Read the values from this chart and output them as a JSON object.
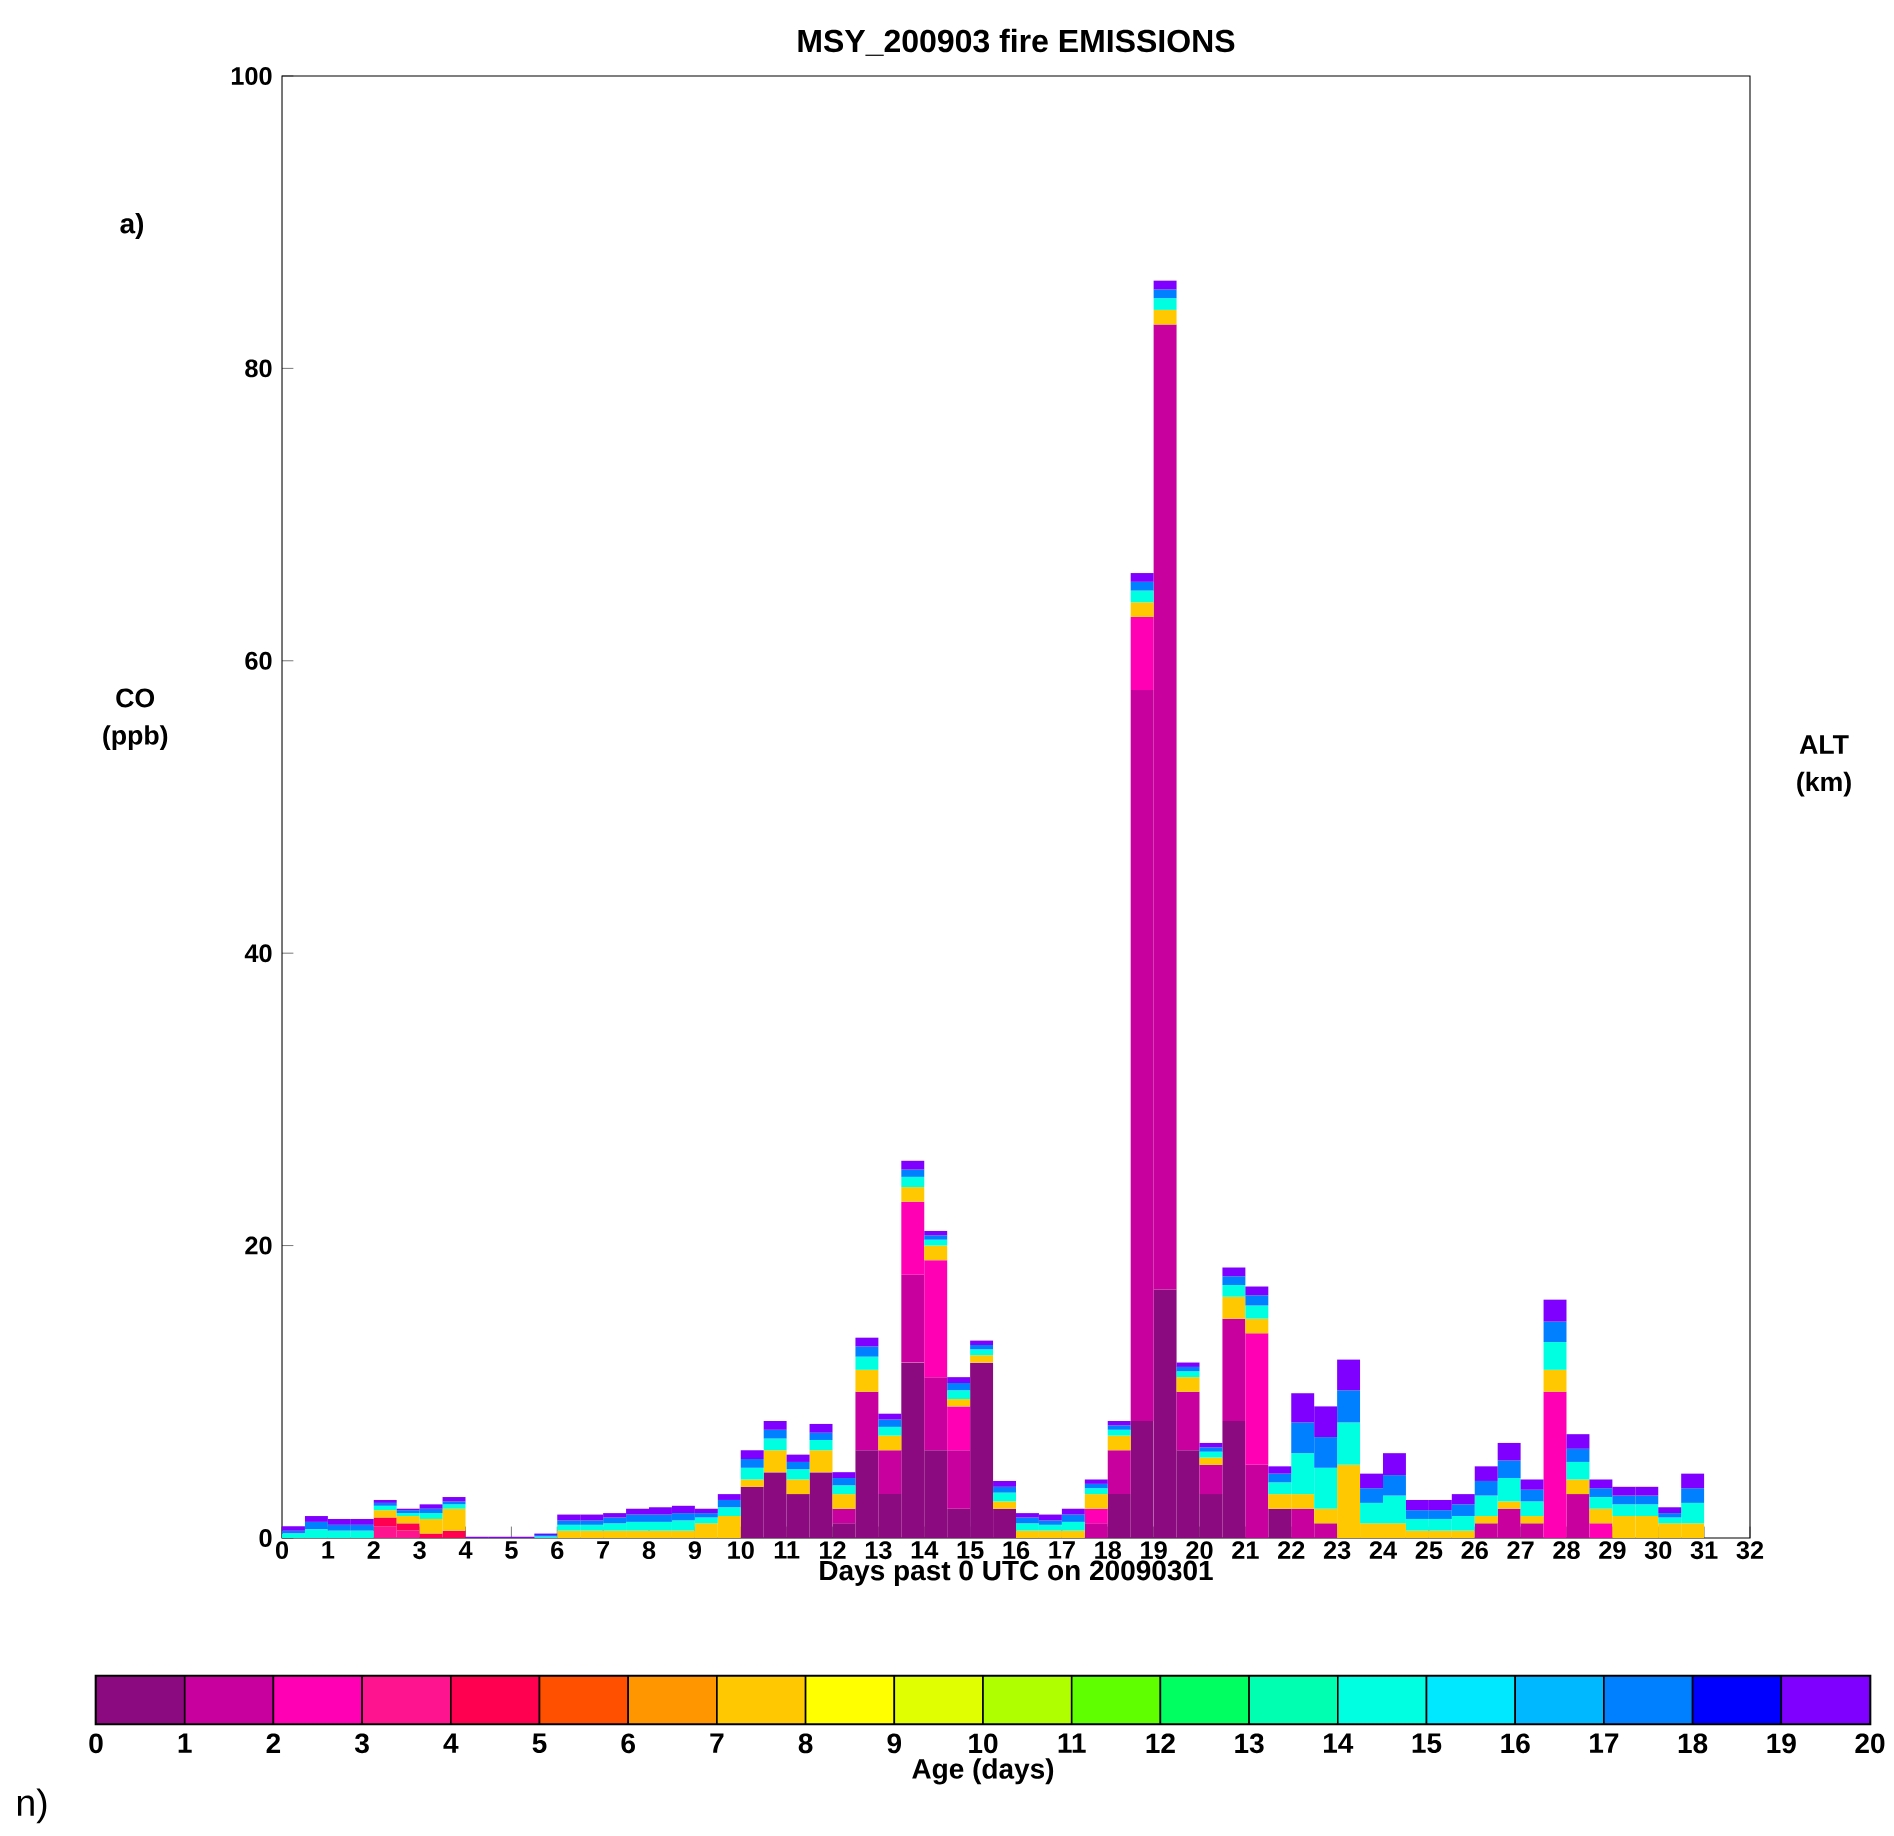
{
  "chart_data": {
    "type": "bar",
    "stacked": true,
    "title": "MSY_200903 fire EMISSIONS",
    "xlabel": "Days past 0 UTC on 20090301",
    "ylabel": "CO (ppb)",
    "y2label": "ALT (km)",
    "clabel": "Age (days)",
    "annotations": [
      "a)",
      "n)"
    ],
    "xlim": [
      0,
      32
    ],
    "ylim": [
      0,
      100
    ],
    "xticks": [
      0,
      1,
      2,
      3,
      4,
      5,
      6,
      7,
      8,
      9,
      10,
      11,
      12,
      13,
      14,
      15,
      16,
      17,
      18,
      19,
      20,
      21,
      22,
      23,
      24,
      25,
      26,
      27,
      28,
      29,
      30,
      31,
      32
    ],
    "yticks": [
      0,
      20,
      40,
      60,
      80,
      100
    ],
    "clim": [
      0,
      20
    ],
    "cticks": [
      0,
      1,
      2,
      3,
      4,
      5,
      6,
      7,
      8,
      9,
      10,
      11,
      12,
      13,
      14,
      15,
      16,
      17,
      18,
      19,
      20
    ],
    "x": [
      0.25,
      0.75,
      1.25,
      1.75,
      2.25,
      2.75,
      3.25,
      3.75,
      4.25,
      4.75,
      5.25,
      5.75,
      6.25,
      6.75,
      7.25,
      7.75,
      8.25,
      8.75,
      9.25,
      9.75,
      10.25,
      10.75,
      11.25,
      11.75,
      12.25,
      12.75,
      13.25,
      13.75,
      14.25,
      14.75,
      15.25,
      15.75,
      16.25,
      16.75,
      17.25,
      17.75,
      18.25,
      18.75,
      19.25,
      19.75,
      20.25,
      20.75,
      21.25,
      21.75,
      22.25,
      22.75,
      23.25,
      23.75,
      24.25,
      24.75,
      25.25,
      25.75,
      26.25,
      26.75,
      27.25,
      27.75,
      28.25,
      28.75,
      29.25,
      29.75,
      30.25,
      30.75
    ],
    "series": [
      {
        "color": "#8c0a80",
        "values": [
          0,
          0,
          0,
          0,
          0,
          0,
          0,
          0,
          0,
          0,
          0,
          0,
          0,
          0,
          0,
          0,
          0,
          0,
          0,
          0,
          3.5,
          4.5,
          3,
          4.5,
          1,
          6,
          3,
          12,
          6,
          2,
          12,
          2,
          0,
          0,
          0,
          0,
          3,
          8,
          17,
          6,
          3,
          8,
          0,
          2,
          0,
          0,
          0,
          0,
          0,
          0,
          0,
          0,
          0,
          0,
          0,
          0,
          0,
          0,
          0,
          0,
          0,
          0
        ]
      },
      {
        "color": "#c8009e",
        "values": [
          0,
          0,
          0,
          0,
          0,
          0,
          0,
          0,
          0,
          0,
          0,
          0,
          0,
          0,
          0,
          0,
          0,
          0,
          0,
          0,
          0,
          0,
          0,
          0,
          1,
          4,
          3,
          6,
          5,
          4,
          0,
          0,
          0,
          0,
          0,
          1,
          3,
          50,
          66,
          4,
          2,
          7,
          5,
          0,
          2,
          1,
          0,
          0,
          0,
          0,
          0,
          0,
          1,
          2,
          1,
          0,
          3,
          0,
          0,
          0,
          0,
          0
        ]
      },
      {
        "color": "#ff00b4",
        "values": [
          0,
          0,
          0,
          0,
          0,
          0,
          0,
          0,
          0,
          0,
          0,
          0,
          0,
          0,
          0,
          0,
          0,
          0,
          0,
          0,
          0,
          0,
          0,
          0,
          0,
          0,
          0,
          5,
          8,
          3,
          0,
          0,
          0,
          0,
          0,
          1,
          0,
          5,
          0,
          0,
          0,
          0,
          9,
          0,
          0,
          0,
          0,
          0,
          0,
          0,
          0,
          0,
          0,
          0,
          0,
          10,
          0,
          1,
          0,
          0,
          0,
          0
        ]
      },
      {
        "color": "#ff1490",
        "values": [
          0,
          0,
          0,
          0,
          0.8,
          0.5,
          0,
          0,
          0,
          0,
          0,
          0,
          0,
          0,
          0,
          0,
          0,
          0,
          0,
          0,
          0,
          0,
          0,
          0,
          0,
          0,
          0,
          0,
          0,
          0,
          0,
          0,
          0,
          0,
          0,
          0,
          0,
          0,
          0,
          0,
          0,
          0,
          0,
          0,
          0,
          0,
          0,
          0,
          0,
          0,
          0,
          0,
          0,
          0,
          0,
          0,
          0,
          0,
          0,
          0,
          0,
          0
        ]
      },
      {
        "color": "#ff0050",
        "values": [
          0,
          0,
          0,
          0,
          0.6,
          0.5,
          0.3,
          0.5,
          0,
          0,
          0,
          0,
          0,
          0,
          0,
          0,
          0,
          0,
          0,
          0,
          0,
          0,
          0,
          0,
          0,
          0,
          0,
          0,
          0,
          0,
          0,
          0,
          0,
          0,
          0,
          0,
          0,
          0,
          0,
          0,
          0,
          0,
          0,
          0,
          0,
          0,
          0,
          0,
          0,
          0,
          0,
          0,
          0,
          0,
          0,
          0,
          0,
          0,
          0,
          0,
          0,
          0
        ]
      },
      {
        "color": "#ff5000",
        "values": [
          0,
          0,
          0,
          0,
          0,
          0,
          0,
          0,
          0,
          0,
          0,
          0,
          0,
          0,
          0,
          0,
          0,
          0,
          0,
          0,
          0,
          0,
          0,
          0,
          0,
          0,
          0,
          0,
          0,
          0,
          0,
          0,
          0,
          0,
          0,
          0,
          0,
          0,
          0,
          0,
          0,
          0,
          0,
          0,
          0,
          0,
          0,
          0,
          0,
          0,
          0,
          0,
          0,
          0,
          0,
          0,
          0,
          0,
          0,
          0,
          0,
          0
        ]
      },
      {
        "color": "#ff9600",
        "values": [
          0,
          0,
          0,
          0,
          0,
          0,
          0,
          0,
          0,
          0,
          0,
          0,
          0,
          0,
          0,
          0,
          0,
          0,
          0,
          0,
          0,
          0,
          0,
          0,
          0,
          0,
          0,
          0,
          0,
          0,
          0,
          0,
          0,
          0,
          0,
          0,
          0,
          0,
          0,
          0,
          0,
          0,
          0,
          0,
          0,
          0,
          0,
          0,
          0,
          0,
          0,
          0,
          0,
          0,
          0,
          0,
          0,
          0,
          0,
          0,
          0,
          0
        ]
      },
      {
        "color": "#ffc800",
        "values": [
          0,
          0,
          0,
          0,
          0.5,
          0.5,
          1,
          1.5,
          0,
          0,
          0,
          0,
          0.5,
          0.5,
          0.5,
          0.5,
          0.5,
          0.5,
          1,
          1.5,
          0.5,
          1.5,
          1,
          1.5,
          1,
          1.5,
          1,
          1,
          1,
          0.5,
          0.5,
          0.5,
          0.5,
          0.5,
          0.5,
          1,
          1,
          1,
          1,
          1,
          0.5,
          1.5,
          1,
          1,
          1,
          1,
          5,
          1,
          1,
          0.5,
          0.5,
          0.5,
          0.5,
          0.5,
          0.5,
          1.5,
          1,
          1,
          1.5,
          1.5,
          1,
          1
        ]
      },
      {
        "color": "#ffff00",
        "values": [
          0,
          0,
          0,
          0,
          0,
          0,
          0,
          0,
          0,
          0,
          0,
          0,
          0,
          0,
          0,
          0,
          0,
          0,
          0,
          0,
          0,
          0,
          0,
          0,
          0,
          0,
          0,
          0,
          0,
          0,
          0,
          0,
          0,
          0,
          0,
          0,
          0,
          0,
          0,
          0,
          0,
          0,
          0,
          0,
          0,
          0,
          0,
          0,
          0,
          0,
          0,
          0,
          0,
          0,
          0,
          0,
          0,
          0,
          0,
          0,
          0,
          0
        ]
      },
      {
        "color": "#e0ff00",
        "values": [
          0,
          0,
          0,
          0,
          0,
          0,
          0,
          0,
          0,
          0,
          0,
          0,
          0,
          0,
          0,
          0,
          0,
          0,
          0,
          0,
          0,
          0,
          0,
          0,
          0,
          0,
          0,
          0,
          0,
          0,
          0,
          0,
          0,
          0,
          0,
          0,
          0,
          0,
          0,
          0,
          0,
          0,
          0,
          0,
          0,
          0,
          0,
          0,
          0,
          0,
          0,
          0,
          0,
          0,
          0,
          0,
          0,
          0,
          0,
          0,
          0,
          0
        ]
      },
      {
        "color": "#b0ff00",
        "values": [
          0,
          0,
          0,
          0,
          0,
          0,
          0,
          0,
          0,
          0,
          0,
          0,
          0,
          0,
          0,
          0,
          0,
          0,
          0,
          0,
          0,
          0,
          0,
          0,
          0,
          0,
          0,
          0,
          0,
          0,
          0,
          0,
          0,
          0,
          0,
          0,
          0,
          0,
          0,
          0,
          0,
          0,
          0,
          0,
          0,
          0,
          0,
          0,
          0,
          0,
          0,
          0,
          0,
          0,
          0,
          0,
          0,
          0,
          0,
          0,
          0,
          0
        ]
      },
      {
        "color": "#60ff00",
        "values": [
          0,
          0,
          0,
          0,
          0,
          0,
          0,
          0,
          0,
          0,
          0,
          0,
          0,
          0,
          0,
          0,
          0,
          0,
          0,
          0,
          0,
          0,
          0,
          0,
          0,
          0,
          0,
          0,
          0,
          0,
          0,
          0,
          0,
          0,
          0,
          0,
          0,
          0,
          0,
          0,
          0,
          0,
          0,
          0,
          0,
          0,
          0,
          0,
          0,
          0,
          0,
          0,
          0,
          0,
          0,
          0,
          0,
          0,
          0,
          0,
          0,
          0
        ]
      },
      {
        "color": "#00ff60",
        "values": [
          0,
          0,
          0,
          0,
          0,
          0,
          0,
          0,
          0,
          0,
          0,
          0,
          0,
          0,
          0,
          0,
          0,
          0,
          0,
          0,
          0,
          0,
          0,
          0,
          0,
          0,
          0,
          0,
          0,
          0,
          0,
          0,
          0,
          0,
          0,
          0,
          0,
          0,
          0,
          0,
          0,
          0,
          0,
          0,
          0,
          0,
          0,
          0,
          0,
          0,
          0,
          0,
          0,
          0,
          0,
          0,
          0,
          0,
          0,
          0,
          0,
          0
        ]
      },
      {
        "color": "#00ffb0",
        "values": [
          0,
          0,
          0,
          0,
          0,
          0,
          0,
          0,
          0,
          0,
          0,
          0,
          0,
          0,
          0,
          0,
          0,
          0,
          0,
          0,
          0,
          0,
          0,
          0,
          0,
          0,
          0,
          0,
          0,
          0,
          0,
          0,
          0,
          0,
          0,
          0,
          0,
          0,
          0,
          0,
          0,
          0,
          0,
          0,
          0,
          0,
          0,
          0,
          0,
          0,
          0,
          0,
          0,
          0,
          0,
          0,
          0,
          0,
          0,
          0,
          0,
          0
        ]
      },
      {
        "color": "#00ffe0",
        "values": [
          0.3,
          0.6,
          0.5,
          0.5,
          0.3,
          0.2,
          0.4,
          0.3,
          0,
          0,
          0,
          0.1,
          0.4,
          0.4,
          0.5,
          0.6,
          0.6,
          0.7,
          0.4,
          0.6,
          0.8,
          0.8,
          0.7,
          0.7,
          0.6,
          0.9,
          0.6,
          0.7,
          0.4,
          0.6,
          0.4,
          0.6,
          0.5,
          0.4,
          0.6,
          0.4,
          0.4,
          0.8,
          0.8,
          0.4,
          0.4,
          0.8,
          0.9,
          0.8,
          2.8,
          2.8,
          2.9,
          1.4,
          1.9,
          0.8,
          0.8,
          1.0,
          1.4,
          1.6,
          1.0,
          1.9,
          1.2,
          0.8,
          0.8,
          0.8,
          0.4,
          1.4
        ]
      },
      {
        "color": "#00e8ff",
        "values": [
          0,
          0,
          0,
          0,
          0,
          0,
          0,
          0,
          0,
          0,
          0,
          0,
          0,
          0,
          0,
          0,
          0,
          0,
          0,
          0,
          0,
          0,
          0,
          0,
          0,
          0,
          0,
          0,
          0,
          0,
          0,
          0,
          0,
          0,
          0,
          0,
          0,
          0,
          0,
          0,
          0,
          0,
          0,
          0,
          0,
          0,
          0,
          0,
          0,
          0,
          0,
          0,
          0,
          0,
          0,
          0,
          0,
          0,
          0,
          0,
          0,
          0
        ]
      },
      {
        "color": "#00b8ff",
        "values": [
          0,
          0,
          0,
          0,
          0,
          0,
          0,
          0,
          0,
          0,
          0,
          0,
          0,
          0,
          0,
          0,
          0,
          0,
          0,
          0,
          0,
          0,
          0,
          0,
          0,
          0,
          0,
          0,
          0,
          0,
          0,
          0,
          0,
          0,
          0,
          0,
          0,
          0,
          0,
          0,
          0,
          0,
          0,
          0,
          0,
          0,
          0,
          0,
          0,
          0,
          0,
          0,
          0,
          0,
          0,
          0,
          0,
          0,
          0,
          0,
          0,
          0
        ]
      },
      {
        "color": "#0080ff",
        "values": [
          0.2,
          0.5,
          0.4,
          0.4,
          0.2,
          0.2,
          0.3,
          0.2,
          0,
          0,
          0,
          0.1,
          0.3,
          0.3,
          0.4,
          0.5,
          0.5,
          0.5,
          0.3,
          0.5,
          0.6,
          0.6,
          0.5,
          0.5,
          0.5,
          0.7,
          0.5,
          0.5,
          0.3,
          0.5,
          0.3,
          0.4,
          0.4,
          0.3,
          0.5,
          0.3,
          0.3,
          0.6,
          0.6,
          0.3,
          0.3,
          0.6,
          0.7,
          0.6,
          2.1,
          2.1,
          2.2,
          1.0,
          1.4,
          0.6,
          0.6,
          0.8,
          1.0,
          1.2,
          0.8,
          1.4,
          0.9,
          0.6,
          0.6,
          0.6,
          0.3,
          1.0
        ]
      },
      {
        "color": "#0000ff",
        "values": [
          0,
          0,
          0,
          0,
          0,
          0,
          0,
          0,
          0,
          0,
          0,
          0,
          0,
          0,
          0,
          0,
          0,
          0,
          0,
          0,
          0,
          0,
          0,
          0,
          0,
          0,
          0,
          0,
          0,
          0,
          0,
          0,
          0,
          0,
          0,
          0,
          0,
          0,
          0,
          0,
          0,
          0,
          0,
          0,
          0,
          0,
          0,
          0,
          0,
          0,
          0,
          0,
          0,
          0,
          0,
          0,
          0,
          0,
          0,
          0,
          0,
          0
        ]
      },
      {
        "color": "#8000ff",
        "values": [
          0.3,
          0.4,
          0.4,
          0.4,
          0.2,
          0.1,
          0.3,
          0.3,
          0.1,
          0.1,
          0.1,
          0.1,
          0.4,
          0.4,
          0.3,
          0.4,
          0.5,
          0.5,
          0.3,
          0.4,
          0.6,
          0.6,
          0.5,
          0.6,
          0.4,
          0.6,
          0.4,
          0.6,
          0.3,
          0.4,
          0.3,
          0.4,
          0.3,
          0.4,
          0.4,
          0.3,
          0.3,
          0.6,
          0.6,
          0.3,
          0.3,
          0.6,
          0.6,
          0.5,
          2.0,
          2.1,
          2.1,
          1.0,
          1.5,
          0.7,
          0.7,
          0.7,
          1.0,
          1.2,
          0.7,
          1.5,
          1.0,
          0.6,
          0.6,
          0.6,
          0.4,
          1.0
        ]
      }
    ]
  }
}
